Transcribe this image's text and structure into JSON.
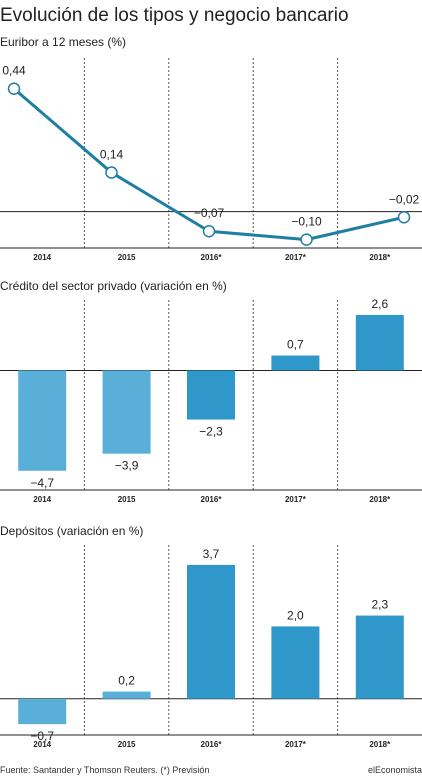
{
  "title": "Evolución de los tipos y negocio bancario",
  "source": "Fuente: Santander y Thomson Reuters. (*) Previsión",
  "brand": "elEconomista",
  "colors": {
    "line": "#1f7fa3",
    "bar_light": "#5aafd9",
    "bar_dark": "#2f97c9",
    "axis": "#222222",
    "grid": "#555555"
  },
  "chart_data": [
    {
      "type": "line",
      "title": "Euribor a 12 meses (%)",
      "categories": [
        "2014",
        "2015",
        "2016*",
        "2017*",
        "2018*"
      ],
      "values": [
        0.44,
        0.14,
        -0.07,
        -0.1,
        -0.02
      ],
      "value_labels": [
        "0,44",
        "0,14",
        "−0,07",
        "−0,10",
        "−0,02"
      ],
      "ylim": [
        -0.13,
        0.55
      ],
      "grid": "vertical dashed"
    },
    {
      "type": "bar",
      "title": "Crédito del sector privado (variación en %)",
      "categories": [
        "2014",
        "2015",
        "2016*",
        "2017*",
        "2018*"
      ],
      "values": [
        -4.7,
        -3.9,
        -2.3,
        0.7,
        2.6
      ],
      "value_labels": [
        "−4,7",
        "−3,9",
        "−2,3",
        "0,7",
        "2,6"
      ],
      "ylim": [
        -5.6,
        3.3
      ],
      "grid": "vertical dashed"
    },
    {
      "type": "bar",
      "title": "Depósitos (variación en %)",
      "categories": [
        "2014",
        "2015",
        "2016*",
        "2017*",
        "2018*"
      ],
      "values": [
        -0.7,
        0.2,
        3.7,
        2.0,
        2.3
      ],
      "value_labels": [
        "−0,7",
        "0,2",
        "3,7",
        "2,0",
        "2,3"
      ],
      "ylim": [
        -1.0,
        4.25
      ],
      "grid": "vertical dashed"
    }
  ]
}
